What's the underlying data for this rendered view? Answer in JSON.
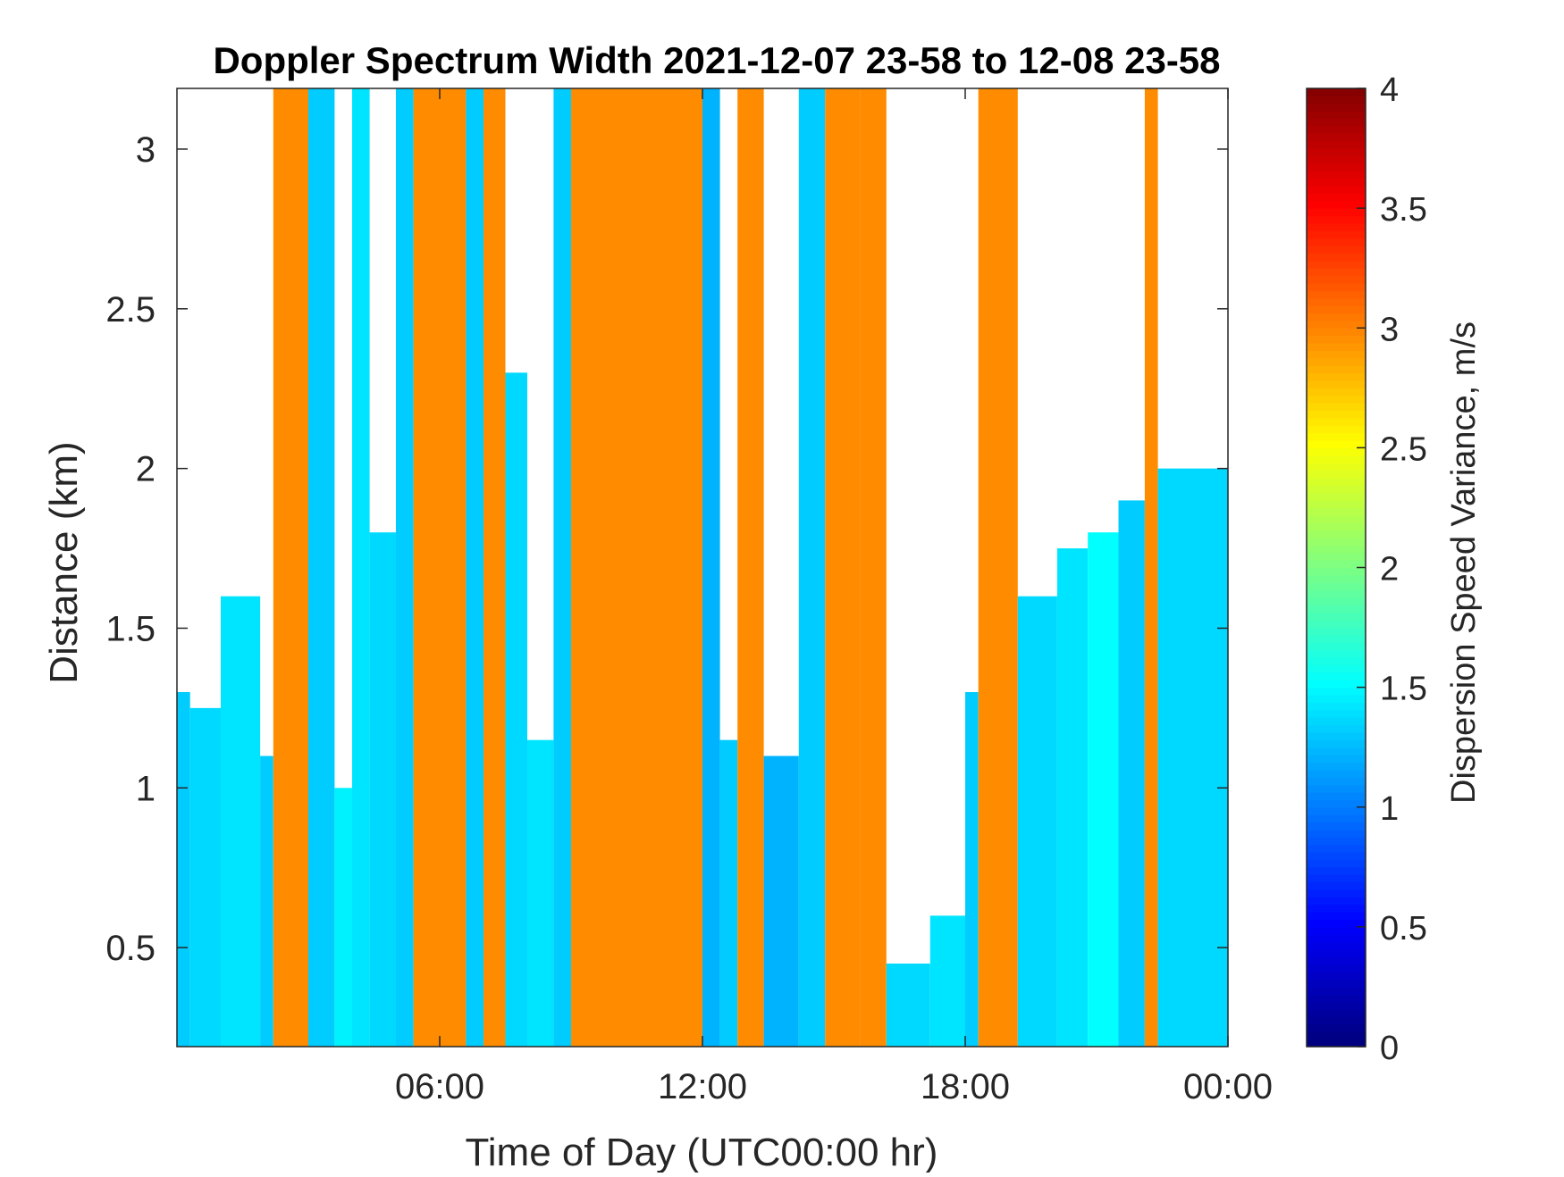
{
  "chart_data": {
    "type": "heatmap",
    "title": "Doppler Spectrum Width 2021-12-07 23-58 to 12-08 23-58",
    "xlabel": "Time of Day (UTC00:00 hr)",
    "ylabel": "Distance (km)",
    "colorbar_label": "Dispersion Speed Variance, m/s",
    "x_ticks": [
      {
        "value": 6,
        "label": "06:00"
      },
      {
        "value": 12,
        "label": "12:00"
      },
      {
        "value": 18,
        "label": "18:00"
      },
      {
        "value": 24,
        "label": "00:00"
      }
    ],
    "y_ticks": [
      {
        "value": 0.5,
        "label": "0.5"
      },
      {
        "value": 1,
        "label": "1"
      },
      {
        "value": 1.5,
        "label": "1.5"
      },
      {
        "value": 2,
        "label": "2"
      },
      {
        "value": 2.5,
        "label": "2.5"
      },
      {
        "value": 3,
        "label": "3"
      }
    ],
    "colorbar_ticks": [
      {
        "value": 0,
        "label": "0"
      },
      {
        "value": 0.5,
        "label": "0.5"
      },
      {
        "value": 1,
        "label": "1"
      },
      {
        "value": 1.5,
        "label": "1.5"
      },
      {
        "value": 2,
        "label": "2"
      },
      {
        "value": 2.5,
        "label": "2.5"
      },
      {
        "value": 3,
        "label": "3"
      },
      {
        "value": 3.5,
        "label": "3.5"
      },
      {
        "value": 4,
        "label": "4"
      }
    ],
    "xlim": [
      0,
      24
    ],
    "ylim": [
      0.19,
      3.19
    ],
    "clim": [
      0,
      4
    ],
    "colormap": "jet",
    "grid": false,
    "time_blocks": [
      {
        "start": 0.0,
        "end": 0.3,
        "v": 1.3,
        "top": 1.3,
        "nan_above": true
      },
      {
        "start": 0.3,
        "end": 1.0,
        "v": 1.35,
        "top": 1.25,
        "nan_above": true
      },
      {
        "start": 1.0,
        "end": 1.9,
        "v": 1.4,
        "top": 1.6,
        "nan_above": true
      },
      {
        "start": 1.9,
        "end": 2.2,
        "v": 1.3,
        "top": 1.1,
        "nan_above": true
      },
      {
        "start": 2.2,
        "end": 3.0,
        "v": 3.0,
        "top": 3.19
      },
      {
        "start": 3.0,
        "end": 3.6,
        "v": 1.3,
        "top": 3.19
      },
      {
        "start": 3.6,
        "end": 4.0,
        "v": 1.45,
        "top": 1.0,
        "nan_above": true
      },
      {
        "start": 4.0,
        "end": 4.4,
        "v": 1.4,
        "top": 3.19
      },
      {
        "start": 4.4,
        "end": 5.0,
        "v": 1.35,
        "top": 1.8,
        "nan_above": true
      },
      {
        "start": 5.0,
        "end": 5.4,
        "v": 1.3,
        "top": 3.19
      },
      {
        "start": 5.4,
        "end": 6.0,
        "v": 3.0,
        "top": 3.19
      },
      {
        "start": 6.0,
        "end": 6.6,
        "v": 3.0,
        "top": 3.19
      },
      {
        "start": 6.6,
        "end": 7.0,
        "v": 1.3,
        "top": 3.19
      },
      {
        "start": 7.0,
        "end": 7.5,
        "v": 3.0,
        "top": 3.19
      },
      {
        "start": 7.5,
        "end": 8.0,
        "v": 1.35,
        "top": 2.3,
        "nan_above": true
      },
      {
        "start": 8.0,
        "end": 8.6,
        "v": 1.4,
        "top": 1.15,
        "nan_above": true
      },
      {
        "start": 8.6,
        "end": 9.0,
        "v": 1.3,
        "top": 3.19
      },
      {
        "start": 9.0,
        "end": 12.0,
        "v": 3.0,
        "top": 3.19
      },
      {
        "start": 12.0,
        "end": 12.4,
        "v": 1.2,
        "top": 3.19
      },
      {
        "start": 12.4,
        "end": 12.8,
        "v": 1.3,
        "top": 1.15,
        "nan_above": true
      },
      {
        "start": 12.8,
        "end": 13.4,
        "v": 3.0,
        "top": 3.19
      },
      {
        "start": 13.4,
        "end": 14.2,
        "v": 1.2,
        "top": 1.1,
        "nan_above": true
      },
      {
        "start": 14.2,
        "end": 14.8,
        "v": 1.3,
        "top": 3.19
      },
      {
        "start": 14.8,
        "end": 15.6,
        "v": 3.0,
        "top": 3.19
      },
      {
        "start": 15.6,
        "end": 16.2,
        "v": 3.0,
        "top": 3.19
      },
      {
        "start": 16.2,
        "end": 17.2,
        "v": 1.35,
        "top": 0.45,
        "nan_above": true
      },
      {
        "start": 17.2,
        "end": 18.0,
        "v": 1.4,
        "top": 0.6,
        "nan_above": true
      },
      {
        "start": 18.0,
        "end": 18.3,
        "v": 1.3,
        "top": 1.3,
        "nan_above": true
      },
      {
        "start": 18.3,
        "end": 19.2,
        "v": 3.0,
        "top": 3.19
      },
      {
        "start": 19.2,
        "end": 20.1,
        "v": 1.35,
        "top": 1.6,
        "nan_above": true
      },
      {
        "start": 20.1,
        "end": 20.8,
        "v": 1.4,
        "top": 1.75,
        "nan_above": true
      },
      {
        "start": 20.8,
        "end": 21.5,
        "v": 1.5,
        "top": 1.8,
        "nan_above": true
      },
      {
        "start": 21.5,
        "end": 22.1,
        "v": 1.3,
        "top": 1.9,
        "nan_above": true
      },
      {
        "start": 22.1,
        "end": 22.4,
        "v": 3.0,
        "top": 3.19
      },
      {
        "start": 22.4,
        "end": 24.0,
        "v": 1.35,
        "top": 2.0,
        "nan_above": true
      }
    ]
  }
}
